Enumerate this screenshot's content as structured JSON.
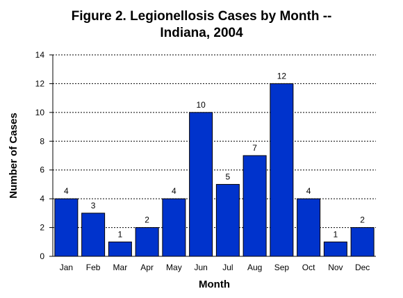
{
  "chart_data": {
    "type": "bar",
    "title_line1": "Figure 2.  Legionellosis Cases by Month --",
    "title_line2": "Indiana, 2004",
    "xlabel": "Month",
    "ylabel": "Number of Cases",
    "categories": [
      "Jan",
      "Feb",
      "Mar",
      "Apr",
      "May",
      "Jun",
      "Jul",
      "Aug",
      "Sep",
      "Oct",
      "Nov",
      "Dec"
    ],
    "values": [
      4,
      3,
      1,
      2,
      4,
      10,
      5,
      7,
      12,
      4,
      1,
      2
    ],
    "ylim": [
      0,
      14
    ],
    "yticks": [
      0,
      2,
      4,
      6,
      8,
      10,
      12,
      14
    ],
    "grid": true,
    "legend": "none",
    "bar_color": "#0033cc"
  }
}
